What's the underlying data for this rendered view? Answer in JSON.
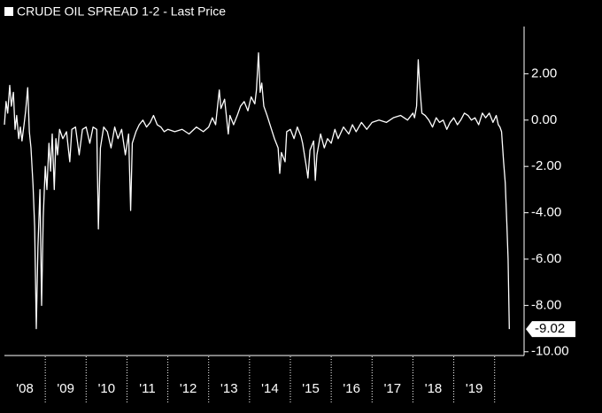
{
  "chart_data": {
    "type": "line",
    "x": [
      2008.0,
      2008.04,
      2008.08,
      2008.13,
      2008.17,
      2008.22,
      2008.26,
      2008.3,
      2008.35,
      2008.39,
      2008.43,
      2008.48,
      2008.52,
      2008.57,
      2008.61,
      2008.65,
      2008.7,
      2008.74,
      2008.78,
      2008.82,
      2008.87,
      2008.91,
      2008.95,
      2009.0,
      2009.04,
      2009.09,
      2009.13,
      2009.17,
      2009.22,
      2009.26,
      2009.3,
      2009.35,
      2009.43,
      2009.52,
      2009.6,
      2009.65,
      2009.74,
      2009.83,
      2009.91,
      2010.0,
      2010.09,
      2010.17,
      2010.26,
      2010.3,
      2010.35,
      2010.43,
      2010.52,
      2010.61,
      2010.7,
      2010.78,
      2010.87,
      2010.96,
      2011.04,
      2011.09,
      2011.13,
      2011.22,
      2011.3,
      2011.39,
      2011.48,
      2011.57,
      2011.65,
      2011.74,
      2011.83,
      2011.91,
      2012.0,
      2012.17,
      2012.35,
      2012.52,
      2012.7,
      2012.87,
      2013.0,
      2013.09,
      2013.17,
      2013.26,
      2013.3,
      2013.39,
      2013.48,
      2013.52,
      2013.61,
      2013.7,
      2013.78,
      2013.87,
      2013.96,
      2014.04,
      2014.13,
      2014.17,
      2014.22,
      2014.26,
      2014.3,
      2014.35,
      2014.43,
      2014.52,
      2014.61,
      2014.7,
      2014.74,
      2014.78,
      2014.87,
      2014.91,
      2015.0,
      2015.09,
      2015.17,
      2015.26,
      2015.3,
      2015.39,
      2015.43,
      2015.48,
      2015.57,
      2015.61,
      2015.65,
      2015.74,
      2015.83,
      2015.91,
      2016.0,
      2016.09,
      2016.17,
      2016.3,
      2016.43,
      2016.52,
      2016.61,
      2016.74,
      2016.87,
      2017.0,
      2017.17,
      2017.35,
      2017.52,
      2017.7,
      2017.87,
      2018.0,
      2018.04,
      2018.09,
      2018.13,
      2018.17,
      2018.22,
      2018.3,
      2018.39,
      2018.48,
      2018.57,
      2018.65,
      2018.74,
      2018.83,
      2018.91,
      2019.0,
      2019.09,
      2019.17,
      2019.26,
      2019.35,
      2019.43,
      2019.52,
      2019.61,
      2019.7,
      2019.78,
      2019.87,
      2019.96,
      2020.04,
      2020.09,
      2020.13,
      2020.17,
      2020.22,
      2020.26,
      2020.3,
      2020.33,
      2020.36
    ],
    "series": [
      {
        "name": "CRUDE OIL SPREAD 1-2 - Last Price",
        "color": "#ffffff",
        "values": [
          -0.2,
          0.8,
          0.3,
          1.5,
          0.6,
          1.2,
          -0.4,
          0.2,
          -0.8,
          -0.3,
          -0.9,
          -0.2,
          0.4,
          1.4,
          -0.5,
          -1.2,
          -2.8,
          -4.6,
          -9.0,
          -5.5,
          -3.0,
          -8.0,
          -4.2,
          -2.0,
          -3.0,
          -1.0,
          -2.2,
          -0.6,
          -3.0,
          -0.8,
          -1.5,
          -0.4,
          -0.8,
          -0.5,
          -1.8,
          -0.4,
          -0.3,
          -1.5,
          -0.4,
          -0.3,
          -1.0,
          -0.3,
          -0.4,
          -4.7,
          -1.2,
          -0.3,
          -0.5,
          -1.2,
          -0.3,
          -0.8,
          -0.4,
          -1.5,
          -0.6,
          -3.9,
          -1.0,
          -0.5,
          -0.2,
          0.0,
          -0.3,
          -0.1,
          0.2,
          -0.2,
          -0.3,
          -0.5,
          -0.4,
          -0.5,
          -0.4,
          -0.6,
          -0.3,
          -0.5,
          -0.3,
          0.1,
          -0.2,
          1.3,
          0.5,
          0.9,
          -0.6,
          0.2,
          -0.2,
          0.2,
          0.6,
          0.8,
          0.4,
          1.0,
          0.7,
          1.3,
          2.9,
          1.2,
          1.6,
          0.6,
          0.2,
          -0.3,
          -0.8,
          -1.2,
          -2.3,
          -1.4,
          -1.8,
          -0.5,
          -0.4,
          -0.8,
          -0.3,
          -0.7,
          -1.0,
          -2.0,
          -2.5,
          -1.3,
          -0.9,
          -2.6,
          -1.5,
          -0.6,
          -1.2,
          -0.8,
          -1.0,
          -0.4,
          -0.8,
          -0.3,
          -0.6,
          -0.2,
          -0.5,
          -0.1,
          -0.4,
          -0.1,
          0.0,
          -0.1,
          0.1,
          0.2,
          0.0,
          0.3,
          0.1,
          0.6,
          2.6,
          1.4,
          0.3,
          0.2,
          0.0,
          -0.3,
          0.1,
          -0.1,
          0.0,
          -0.4,
          -0.1,
          0.1,
          -0.2,
          0.0,
          0.3,
          0.2,
          0.0,
          0.1,
          -0.2,
          0.3,
          0.1,
          0.3,
          -0.1,
          0.2,
          -0.2,
          -0.3,
          -0.5,
          -1.8,
          -2.7,
          -4.5,
          -6.0,
          -9.02
        ]
      }
    ],
    "xlim": [
      2008.0,
      2020.7
    ],
    "xticks": [
      {
        "value": 2008.5,
        "label": "'08"
      },
      {
        "value": 2009.5,
        "label": "'09"
      },
      {
        "value": 2010.5,
        "label": "'10"
      },
      {
        "value": 2011.5,
        "label": "'11"
      },
      {
        "value": 2012.5,
        "label": "'12"
      },
      {
        "value": 2013.5,
        "label": "'13"
      },
      {
        "value": 2014.5,
        "label": "'14"
      },
      {
        "value": 2015.5,
        "label": "'15"
      },
      {
        "value": 2016.5,
        "label": "'16"
      },
      {
        "value": 2017.5,
        "label": "'17"
      },
      {
        "value": 2018.5,
        "label": "'18"
      },
      {
        "value": 2019.5,
        "label": "'19"
      }
    ],
    "ylim": [
      -10.2,
      4
    ],
    "yticks": [
      {
        "value": 2,
        "label": "2.00"
      },
      {
        "value": 0,
        "label": "0.00"
      },
      {
        "value": -2,
        "label": "-2.00"
      },
      {
        "value": -4,
        "label": "-4.00"
      },
      {
        "value": -6,
        "label": "-6.00"
      },
      {
        "value": -8,
        "label": "-8.00"
      },
      {
        "value": -10,
        "label": "-10.00"
      }
    ]
  }
}
